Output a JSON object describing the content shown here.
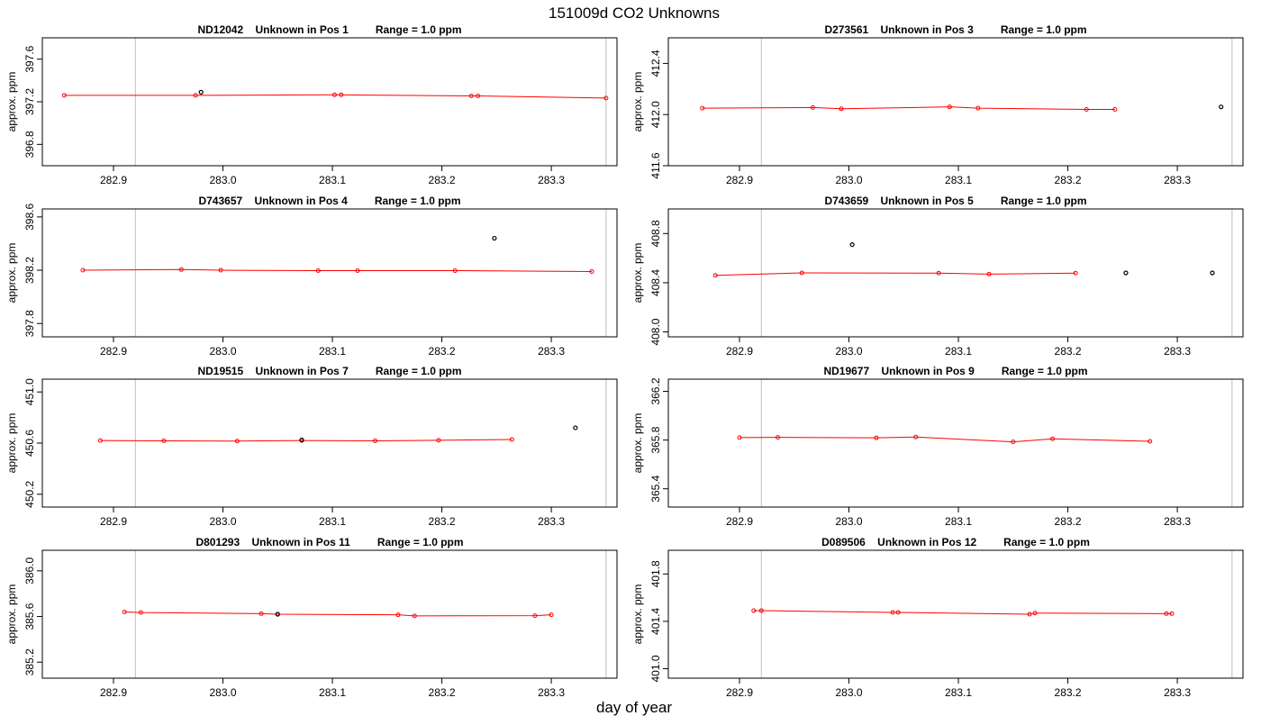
{
  "page": {
    "title": "151009d  CO2 Unknowns",
    "xlabel": "day of year"
  },
  "colors": {
    "series_line": "#ff0000",
    "series_point": "#ff0000",
    "flagged_point": "#000000",
    "marker_line": "#bebebe",
    "frame": "#000000"
  },
  "chart_data": [
    {
      "type": "line",
      "title": "ND12042    Unknown in Pos 1         Range = 1.0 ppm",
      "ylabel": "approx. ppm",
      "xlim": [
        282.835,
        283.36
      ],
      "ylim": [
        396.6,
        397.8
      ],
      "xticks": [
        "282.9",
        "283.0",
        "283.1",
        "283.2",
        "283.3"
      ],
      "yticks": [
        "396.8",
        "397.2",
        "397.6"
      ],
      "vlines": [
        282.92,
        283.35
      ],
      "series": [
        {
          "x": [
            282.855,
            282.975,
            283.102,
            283.108,
            283.227,
            283.233,
            283.35
          ],
          "y": [
            397.26,
            397.26,
            397.265,
            397.265,
            397.255,
            397.255,
            397.235
          ]
        }
      ],
      "flagged": [
        {
          "x": 282.98,
          "y": 397.29
        }
      ]
    },
    {
      "type": "line",
      "title": "D273561    Unknown in Pos 3         Range = 1.0 ppm",
      "ylabel": "approx. ppm",
      "xlim": [
        282.835,
        283.36
      ],
      "ylim": [
        411.6,
        412.6
      ],
      "xticks": [
        "282.9",
        "283.0",
        "283.1",
        "283.2",
        "283.3"
      ],
      "yticks": [
        "411.6",
        "412.0",
        "412.4"
      ],
      "vlines": [
        282.92,
        283.35
      ],
      "series": [
        {
          "x": [
            282.866,
            282.967,
            282.993,
            283.092,
            283.118,
            283.217,
            283.243
          ],
          "y": [
            412.05,
            412.055,
            412.045,
            412.06,
            412.05,
            412.04,
            412.04
          ]
        }
      ],
      "flagged": [
        {
          "x": 283.34,
          "y": 412.06
        }
      ]
    },
    {
      "type": "line",
      "title": "D743657    Unknown in Pos 4         Range = 1.0 ppm",
      "ylabel": "approx. ppm",
      "xlim": [
        282.835,
        283.36
      ],
      "ylim": [
        397.7,
        398.66
      ],
      "xticks": [
        "282.9",
        "283.0",
        "283.1",
        "283.2",
        "283.3"
      ],
      "yticks": [
        "397.8",
        "398.2",
        "398.6"
      ],
      "vlines": [
        282.92,
        283.35
      ],
      "series": [
        {
          "x": [
            282.872,
            282.962,
            282.998,
            283.087,
            283.123,
            283.212,
            283.337
          ],
          "y": [
            398.2,
            398.205,
            398.2,
            398.197,
            398.197,
            398.197,
            398.19
          ]
        }
      ],
      "flagged": [
        {
          "x": 283.248,
          "y": 398.44
        }
      ]
    },
    {
      "type": "line",
      "title": "D743659    Unknown in Pos 5         Range = 1.0 ppm",
      "ylabel": "approx. ppm",
      "xlim": [
        282.835,
        283.36
      ],
      "ylim": [
        407.96,
        409.0
      ],
      "xticks": [
        "282.9",
        "283.0",
        "283.1",
        "283.2",
        "283.3"
      ],
      "yticks": [
        "408.0",
        "408.4",
        "408.8"
      ],
      "vlines": [
        282.92,
        283.35
      ],
      "series": [
        {
          "x": [
            282.878,
            282.957,
            283.082,
            283.128,
            283.207
          ],
          "y": [
            408.46,
            408.48,
            408.478,
            408.47,
            408.478
          ]
        }
      ],
      "flagged": [
        {
          "x": 283.003,
          "y": 408.71
        },
        {
          "x": 283.253,
          "y": 408.48
        },
        {
          "x": 283.332,
          "y": 408.48
        }
      ]
    },
    {
      "type": "line",
      "title": "ND19515    Unknown in Pos 7         Range = 1.0 ppm",
      "ylabel": "approx. ppm",
      "xlim": [
        282.835,
        283.36
      ],
      "ylim": [
        450.1,
        451.1
      ],
      "xticks": [
        "282.9",
        "283.0",
        "283.1",
        "283.2",
        "283.3"
      ],
      "yticks": [
        "450.2",
        "450.6",
        "451.0"
      ],
      "vlines": [
        282.92,
        283.35
      ],
      "series": [
        {
          "x": [
            282.888,
            282.946,
            283.013,
            283.072,
            283.139,
            283.197,
            283.264
          ],
          "y": [
            450.62,
            450.618,
            450.616,
            450.62,
            450.618,
            450.622,
            450.628
          ]
        }
      ],
      "flagged": [
        {
          "x": 283.072,
          "y": 450.625
        },
        {
          "x": 283.322,
          "y": 450.72
        }
      ]
    },
    {
      "type": "line",
      "title": "ND19677    Unknown in Pos 9         Range = 1.0 ppm",
      "ylabel": "approx. ppm",
      "xlim": [
        282.835,
        283.36
      ],
      "ylim": [
        365.25,
        366.3
      ],
      "xticks": [
        "282.9",
        "283.0",
        "283.1",
        "283.2",
        "283.3"
      ],
      "yticks": [
        "365.4",
        "365.8",
        "366.2"
      ],
      "vlines": [
        282.92,
        283.35
      ],
      "series": [
        {
          "x": [
            282.9,
            282.935,
            283.025,
            283.061,
            283.15,
            283.186,
            283.275
          ],
          "y": [
            365.82,
            365.822,
            365.818,
            365.825,
            365.785,
            365.81,
            365.79
          ]
        }
      ],
      "flagged": []
    },
    {
      "type": "line",
      "title": "D801293    Unknown in Pos 11         Range = 1.0 ppm",
      "ylabel": "approx. ppm",
      "xlim": [
        282.835,
        283.36
      ],
      "ylim": [
        385.06,
        386.18
      ],
      "xticks": [
        "282.9",
        "283.0",
        "283.1",
        "283.2",
        "283.3"
      ],
      "yticks": [
        "385.2",
        "385.6",
        "386.0"
      ],
      "vlines": [
        282.92,
        283.35
      ],
      "series": [
        {
          "x": [
            282.91,
            282.925,
            283.035,
            283.05,
            283.16,
            283.175,
            283.285,
            283.3
          ],
          "y": [
            385.64,
            385.635,
            385.625,
            385.62,
            385.615,
            385.605,
            385.607,
            385.615
          ]
        }
      ],
      "flagged": [
        {
          "x": 283.05,
          "y": 385.62
        }
      ]
    },
    {
      "type": "line",
      "title": "D089506    Unknown in Pos 12         Range = 1.0 ppm",
      "ylabel": "approx. ppm",
      "xlim": [
        282.835,
        283.36
      ],
      "ylim": [
        400.92,
        402.0
      ],
      "xticks": [
        "282.9",
        "283.0",
        "283.1",
        "283.2",
        "283.3"
      ],
      "yticks": [
        "401.0",
        "401.4",
        "401.8"
      ],
      "vlines": [
        282.92,
        283.35
      ],
      "series": [
        {
          "x": [
            282.913,
            282.92,
            283.04,
            283.045,
            283.165,
            283.17,
            283.29,
            283.295
          ],
          "y": [
            401.49,
            401.49,
            401.475,
            401.475,
            401.46,
            401.47,
            401.465,
            401.465
          ]
        }
      ],
      "flagged": []
    }
  ]
}
